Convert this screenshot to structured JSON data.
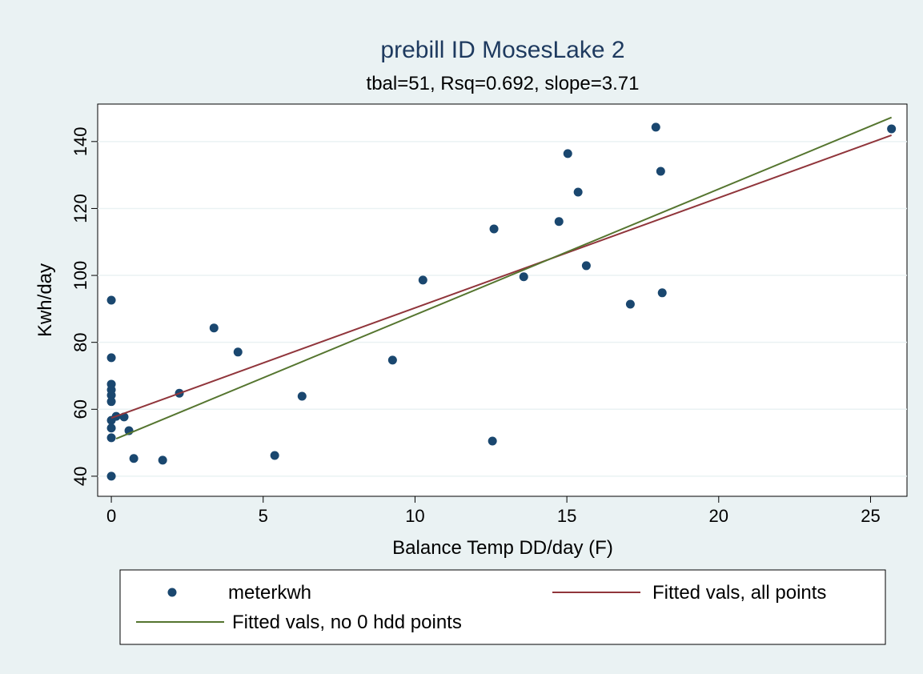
{
  "chart_data": {
    "type": "scatter",
    "title": "prebill  ID MosesLake 2",
    "subtitle": "tbal=51, Rsq=0.692, slope=3.71",
    "x_label": "Balance Temp DD/day (F)",
    "y_label": "Kwh/day",
    "xlim": [
      -0.45,
      26.2
    ],
    "ylim": [
      34.0,
      151.2
    ],
    "xticks": [
      0,
      5,
      10,
      15,
      20,
      25
    ],
    "yticks": [
      40,
      60,
      80,
      100,
      120,
      140
    ],
    "grid": true,
    "series": [
      {
        "name": "meterkwh",
        "type": "scatter",
        "color": "#1a476f",
        "x": [
          0,
          0,
          0,
          0,
          0,
          0,
          0,
          0,
          0,
          0,
          0.16,
          0.42,
          0.58,
          0.74,
          1.69,
          2.24,
          3.38,
          4.17,
          5.38,
          6.28,
          9.26,
          10.26,
          12.6,
          12.55,
          13.58,
          14.74,
          15.03,
          15.37,
          15.64,
          17.09,
          17.93,
          18.09,
          18.14,
          25.69
        ],
        "values": [
          92.6,
          75.4,
          67.5,
          65.8,
          64.2,
          62.3,
          56.7,
          54.4,
          51.5,
          40,
          57.9,
          57.7,
          53.6,
          45.3,
          44.8,
          64.8,
          84.3,
          77.1,
          46.2,
          63.9,
          74.7,
          98.6,
          113.9,
          50.5,
          99.6,
          116.1,
          136.4,
          124.9,
          102.9,
          91.4,
          144.3,
          131.1,
          94.8,
          143.8
        ]
      },
      {
        "name": "Fitted vals, all points",
        "type": "line",
        "color": "#90353b",
        "x": [
          0,
          25.69
        ],
        "values": [
          57.4,
          141.9
        ]
      },
      {
        "name": "Fitted vals, no 0 hdd points",
        "type": "line",
        "color": "#55752f",
        "x": [
          0.16,
          25.69
        ],
        "values": [
          51.2,
          147.2
        ]
      }
    ]
  }
}
